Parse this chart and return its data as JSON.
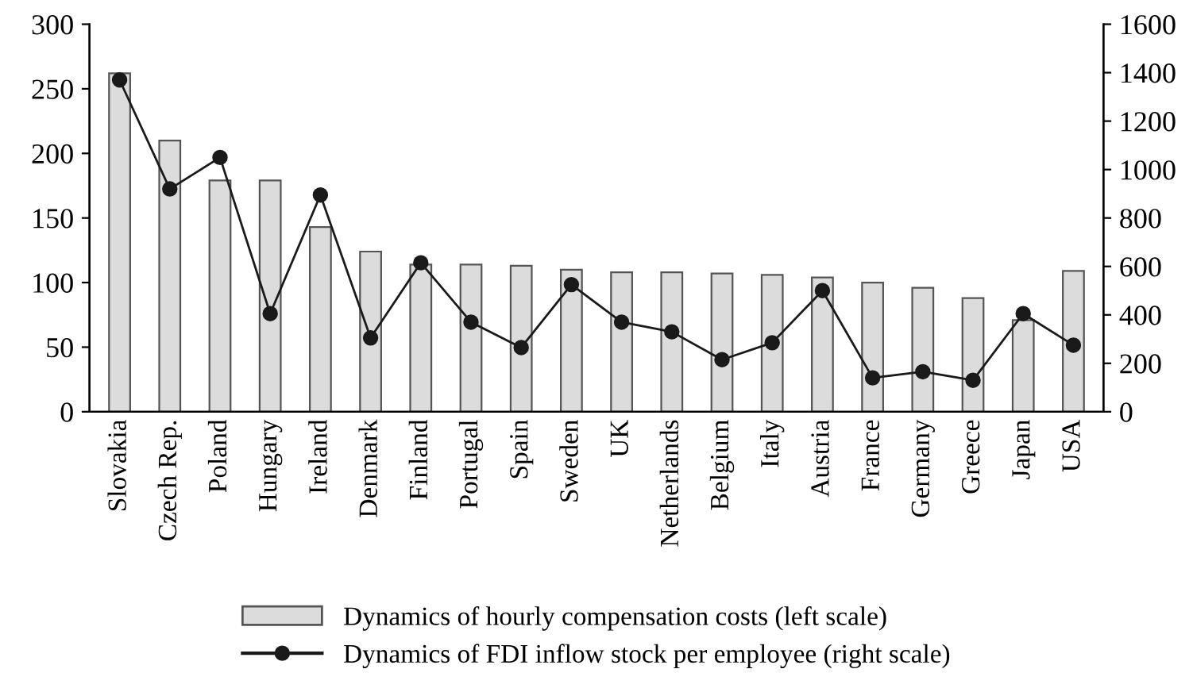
{
  "chart_data": {
    "type": "bar",
    "categories": [
      "Slovakia",
      "Czech Rep.",
      "Poland",
      "Hungary",
      "Ireland",
      "Denmark",
      "Finland",
      "Portugal",
      "Spain",
      "Sweden",
      "UK",
      "Netherlands",
      "Belgium",
      "Italy",
      "Austria",
      "France",
      "Germany",
      "Greece",
      "Japan",
      "USA"
    ],
    "series": [
      {
        "name": "Dynamics of hourly compensation costs (left scale)",
        "color": "#dcdcdc",
        "values": [
          262,
          210,
          179,
          179,
          143,
          124,
          114,
          114,
          113,
          110,
          108,
          108,
          107,
          106,
          104,
          100,
          96,
          88,
          71,
          109
        ]
      },
      {
        "name": "Dynamics of FDI inflow stock per employee (right scale)",
        "type": "line",
        "axis": "y2",
        "color": "#1a1a1a",
        "values": [
          1370,
          920,
          1050,
          405,
          895,
          305,
          615,
          370,
          265,
          525,
          370,
          330,
          215,
          285,
          500,
          140,
          165,
          130,
          405,
          275
        ]
      }
    ],
    "ylim": [
      0,
      300
    ],
    "yticks": [
      0,
      50,
      100,
      150,
      200,
      250,
      300
    ],
    "y2lim": [
      0,
      1600
    ],
    "y2ticks": [
      0,
      200,
      400,
      600,
      800,
      1000,
      1200,
      1400,
      1600
    ],
    "grid": false,
    "legend": "bottom",
    "marker": "circle",
    "line_style": "solid"
  }
}
